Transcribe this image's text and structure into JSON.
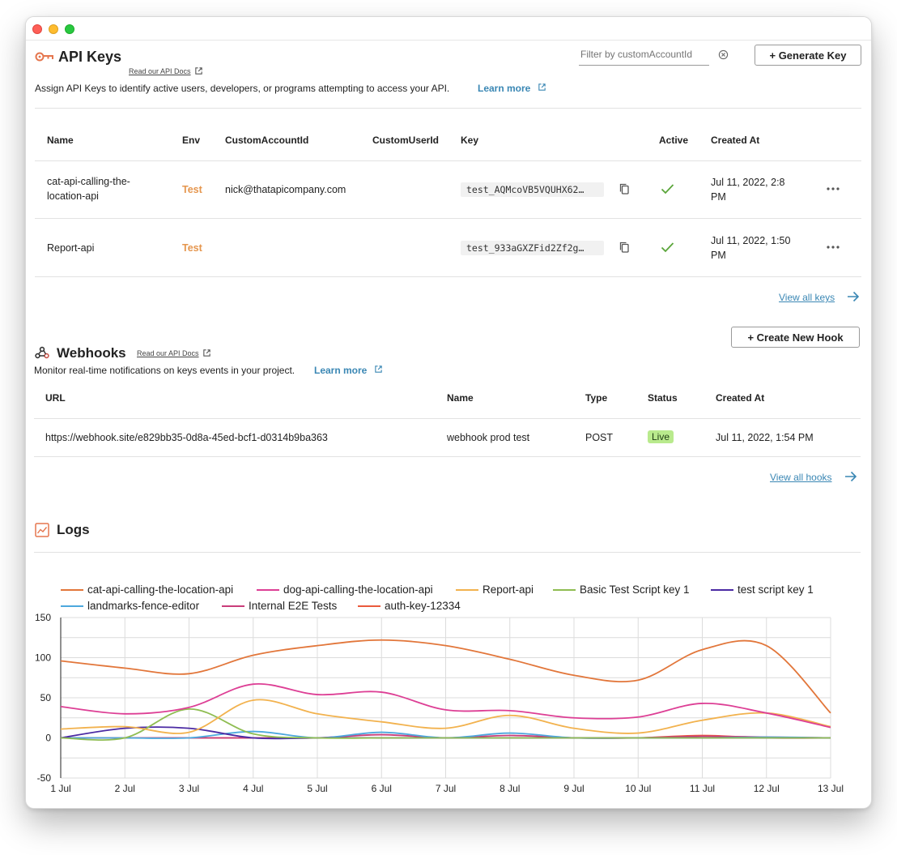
{
  "api_keys": {
    "title": "API Keys",
    "docs_link": "Read our API Docs",
    "description": "Assign API Keys to identify active users, developers, or programs attempting to access your API.",
    "learn_more": "Learn more",
    "filter_placeholder": "Filter by customAccountId",
    "generate_button": "+ Generate Key",
    "columns": [
      "Name",
      "Env",
      "CustomAccountId",
      "CustomUserId",
      "Key",
      "Active",
      "Created At"
    ],
    "rows": [
      {
        "name_line1": "cat-api-calling-the-",
        "name_line2": "location-api",
        "env": "Test",
        "custom_account_id": "nick@thatapicompany.com",
        "custom_user_id": "",
        "key": "test_AQMcoVB5VQUHX62…",
        "created_line1": "Jul 11, 2022, 2:8",
        "created_line2": "PM"
      },
      {
        "name_line1": "Report-api",
        "name_line2": "",
        "env": "Test",
        "custom_account_id": "",
        "custom_user_id": "",
        "key": "test_933aGXZFid2Zf2g…",
        "created_line1": "Jul 11, 2022, 1:50",
        "created_line2": "PM"
      }
    ],
    "view_all": "View all keys"
  },
  "webhooks": {
    "title": "Webhooks",
    "docs_link": "Read our API Docs",
    "description": "Monitor real-time notifications on keys events in your project.",
    "learn_more": "Learn more",
    "create_button": "+ Create New Hook",
    "columns": [
      "URL",
      "Name",
      "Type",
      "Status",
      "Created At"
    ],
    "rows": [
      {
        "url": "https://webhook.site/e829bb35-0d8a-45ed-bcf1-d0314b9ba363",
        "name": "webhook prod test",
        "type": "POST",
        "status": "Live",
        "created": "Jul 11, 2022, 1:54 PM"
      }
    ],
    "view_all": "View all hooks"
  },
  "logs": {
    "title": "Logs"
  },
  "colors": {
    "accent_link": "#3a87b4",
    "env_test": "#e5964e",
    "active_check": "#5aa53a",
    "live_badge": "#b9ea8d"
  },
  "chart_data": {
    "type": "line",
    "x": [
      "1 Jul",
      "2 Jul",
      "3 Jul",
      "4 Jul",
      "5 Jul",
      "6 Jul",
      "7 Jul",
      "8 Jul",
      "9 Jul",
      "10 Jul",
      "11 Jul",
      "12 Jul",
      "13 Jul"
    ],
    "ylim": [
      -50,
      150
    ],
    "yticks": [
      150,
      100,
      50,
      0,
      -50
    ],
    "grid": true,
    "legend_position": "top",
    "series": [
      {
        "name": "cat-api-calling-the-location-api",
        "color": "#e2763a",
        "values": [
          96,
          87,
          80,
          103,
          115,
          122,
          115,
          98,
          78,
          72,
          110,
          115,
          31
        ]
      },
      {
        "name": "dog-api-calling-the-location-api",
        "color": "#dd3f95",
        "values": [
          39,
          30,
          38,
          67,
          54,
          57,
          35,
          34,
          25,
          26,
          43,
          31,
          13
        ]
      },
      {
        "name": "Report-api",
        "color": "#f2b24e",
        "values": [
          11,
          14,
          7,
          47,
          30,
          20,
          12,
          28,
          12,
          6,
          22,
          31,
          14
        ]
      },
      {
        "name": "Basic Test Script key 1",
        "color": "#8fbd52",
        "values": [
          0,
          0,
          36,
          5,
          0,
          0,
          0,
          0,
          0,
          0,
          0,
          0,
          0
        ]
      },
      {
        "name": "test script key 1",
        "color": "#4b2aa3",
        "values": [
          0,
          12,
          12,
          0,
          0,
          0,
          0,
          0,
          0,
          0,
          0,
          0,
          0
        ]
      },
      {
        "name": "landmarks-fence-editor",
        "color": "#4da8dd",
        "values": [
          0,
          0,
          0,
          8,
          0,
          7,
          0,
          6,
          0,
          0,
          0,
          1,
          0
        ]
      },
      {
        "name": "Internal E2E Tests",
        "color": "#c93d7a",
        "values": [
          0,
          0,
          0,
          0,
          0,
          4,
          0,
          3,
          0,
          0,
          2,
          1,
          0
        ]
      },
      {
        "name": "auth-key-12334",
        "color": "#ea5a3c",
        "values": [
          0,
          0,
          0,
          0,
          0,
          0,
          0,
          0,
          0,
          0,
          3,
          0,
          0
        ]
      }
    ]
  }
}
